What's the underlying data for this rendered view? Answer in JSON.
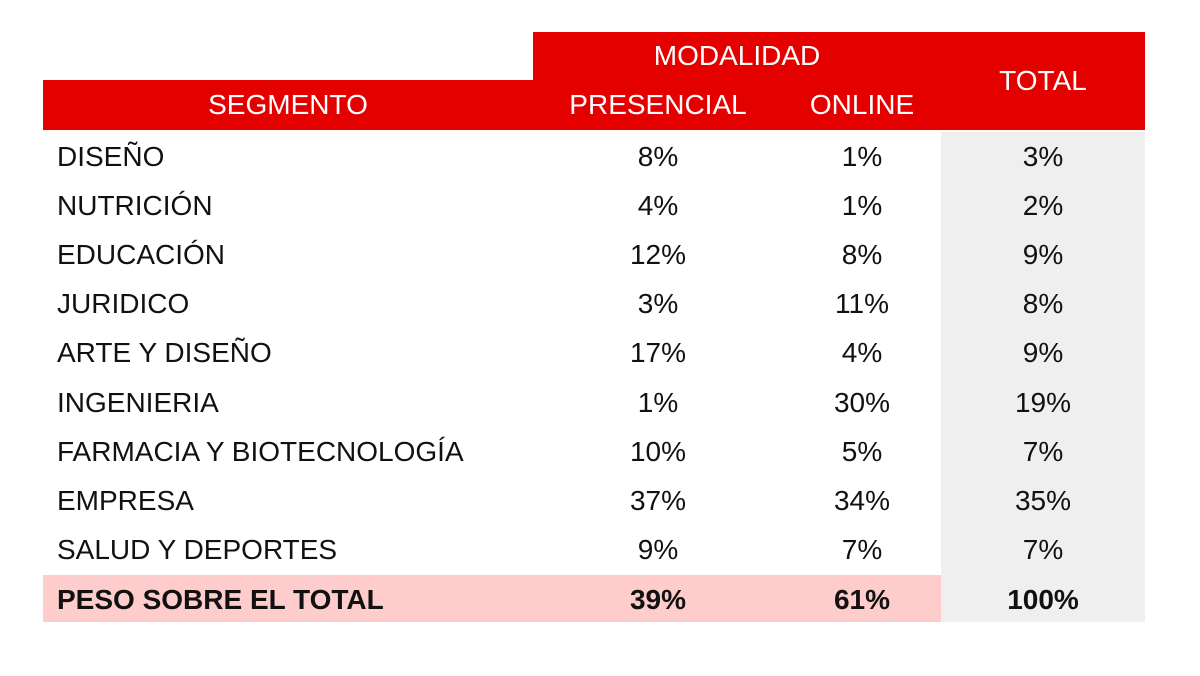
{
  "header": {
    "modality": "MODALIDAD",
    "total": "TOTAL",
    "segment": "SEGMENTO",
    "columns": [
      "PRESENCIAL",
      "ONLINE"
    ]
  },
  "rows": [
    [
      "DISEÑO",
      "8%",
      "1%",
      "3%"
    ],
    [
      "NUTRICIÓN",
      "4%",
      "1%",
      "2%"
    ],
    [
      "EDUCACIÓN",
      "12%",
      "8%",
      "9%"
    ],
    [
      "JURIDICO",
      "3%",
      "11%",
      "8%"
    ],
    [
      "ARTE Y DISEÑO",
      "17%",
      "4%",
      "9%"
    ],
    [
      "INGENIERIA",
      "1%",
      "30%",
      "19%"
    ],
    [
      "FARMACIA Y BIOTECNOLOGÍA",
      "10%",
      "5%",
      "7%"
    ],
    [
      "EMPRESA",
      "37%",
      "34%",
      "35%"
    ],
    [
      "SALUD Y DEPORTES",
      "9%",
      "7%",
      "7%"
    ]
  ],
  "footer": [
    "PESO SOBRE EL TOTAL",
    "39%",
    "61%",
    "100%"
  ]
}
